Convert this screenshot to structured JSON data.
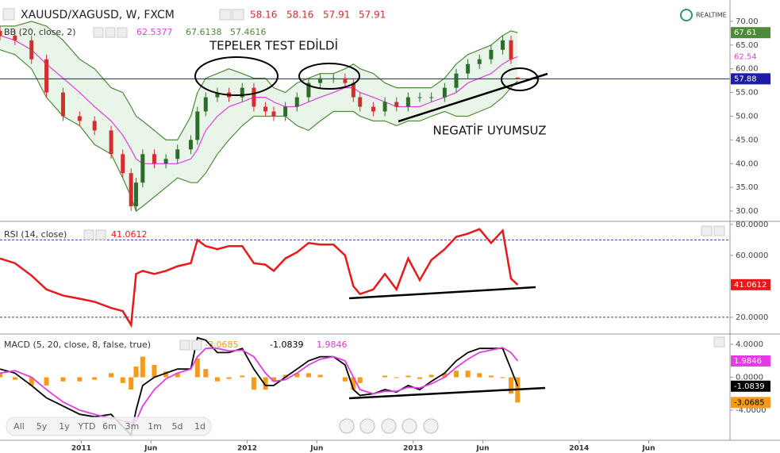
{
  "chart_data": [
    {
      "type": "candlestick",
      "title": "XAUUSD/XAGUSD, W, FXCM",
      "realtime": "REALTIME",
      "x": [
        2010.51,
        2010.6,
        2010.7,
        2010.79,
        2010.89,
        2010.99,
        2011.08,
        2011.18,
        2011.25,
        2011.3,
        2011.33,
        2011.37,
        2011.44,
        2011.51,
        2011.58,
        2011.66,
        2011.7,
        2011.75,
        2011.82,
        2011.89,
        2011.97,
        2012.04,
        2012.11,
        2012.16,
        2012.23,
        2012.3,
        2012.37,
        2012.44,
        2012.52,
        2012.59,
        2012.64,
        2012.68,
        2012.76,
        2012.83,
        2012.9,
        2012.97,
        2013.04,
        2013.11,
        2013.19,
        2013.26,
        2013.33,
        2013.4,
        2013.47,
        2013.54,
        2013.59,
        2013.63
      ],
      "open": [
        68,
        67,
        66,
        62,
        55,
        50,
        49,
        47,
        42,
        38,
        31,
        36,
        42,
        40,
        41,
        43,
        45,
        51,
        54,
        55,
        54,
        56,
        52,
        51,
        50,
        52,
        54,
        57,
        58,
        58,
        57,
        54,
        52,
        51,
        53,
        52,
        54,
        54,
        54,
        56,
        59,
        61,
        62,
        64,
        66,
        58.16
      ],
      "high": [
        69,
        68,
        67,
        63,
        56,
        51,
        50,
        48,
        43,
        39,
        37,
        43,
        43,
        42,
        44,
        46,
        52,
        55,
        56,
        56,
        57,
        57,
        53,
        52,
        53,
        55,
        58,
        59,
        59,
        59,
        58,
        55,
        53,
        54,
        54,
        55,
        55,
        55,
        57,
        60,
        62,
        63,
        65,
        67,
        67,
        58.16
      ],
      "low": [
        66,
        65,
        61,
        54,
        49,
        48,
        46,
        41,
        37,
        30,
        30,
        35,
        39,
        39,
        40,
        42,
        44,
        50,
        53,
        53,
        53,
        51,
        50,
        49,
        49,
        51,
        53,
        56,
        57,
        56,
        53,
        51,
        50,
        50,
        51,
        51,
        53,
        53,
        53,
        55,
        58,
        60,
        61,
        63,
        61,
        57.91
      ],
      "close": [
        67,
        66,
        62,
        55,
        50,
        49,
        47,
        42,
        38,
        31,
        36,
        42,
        40,
        41,
        43,
        45,
        51,
        54,
        55,
        54,
        56,
        52,
        51,
        50,
        52,
        54,
        57,
        58,
        58,
        57,
        54,
        52,
        51,
        53,
        52,
        54,
        54,
        54,
        56,
        59,
        61,
        62,
        64,
        66,
        62,
        57.91
      ],
      "up_color": "#2b6e2b",
      "down_color": "#d32f2f",
      "xlim": [
        2010.51,
        2014.91
      ],
      "ylim": [
        28.0,
        74.5
      ],
      "yticks": [
        {
          "value": 30,
          "label": "30.00"
        },
        {
          "value": 35,
          "label": "35.00"
        },
        {
          "value": 40,
          "label": "40.00"
        },
        {
          "value": 45,
          "label": "45.00"
        },
        {
          "value": 50,
          "label": "50.00"
        },
        {
          "value": 55,
          "label": "55.00"
        },
        {
          "value": 60,
          "label": "60.00"
        },
        {
          "value": 65,
          "label": "65.00"
        },
        {
          "value": 70,
          "label": "70.00"
        }
      ],
      "bb": {
        "title": "BB (20, close, 2)",
        "fill": "#e9f5e9",
        "series": [
          {
            "color": "#4f8a3a",
            "last_label": "67.61",
            "values": [
              69,
              69,
              70,
              69,
              66,
              62,
              60,
              56,
              55,
              52,
              50,
              49,
              47,
              45,
              45,
              50,
              55,
              58,
              59,
              60,
              59,
              58,
              58,
              56,
              55,
              57,
              58,
              59,
              59,
              60,
              61,
              60,
              59,
              57,
              56,
              56,
              56,
              56,
              58,
              61,
              63,
              64,
              65,
              67,
              68,
              67.6138
            ]
          },
          {
            "color": "#e03ee0",
            "last_label": "62.54",
            "values": [
              67,
              66,
              64,
              61,
              58,
              55,
              52,
              49,
              46,
              43,
              41,
              40,
              40,
              40,
              40,
              41,
              43,
              47,
              50,
              52,
              53,
              54,
              54,
              53,
              52,
              52,
              53,
              54,
              55,
              56,
              56,
              55,
              54,
              53,
              52,
              52,
              52,
              53,
              54,
              55,
              57,
              58,
              59,
              61,
              62,
              62.5377
            ]
          },
          {
            "color": "#4f8a3a",
            "values": [
              64,
              63,
              60,
              54,
              50,
              48,
              44,
              42,
              37,
              33,
              30,
              31,
              33,
              35,
              37,
              36,
              36,
              38,
              42,
              45,
              48,
              50,
              50,
              50,
              50,
              48,
              47,
              49,
              51,
              51,
              51,
              50,
              49,
              49,
              48,
              49,
              49,
              50,
              51,
              50,
              50,
              51,
              52,
              54,
              56,
              57.4616
            ]
          }
        ]
      },
      "hline": {
        "value": 57.88,
        "color": "#1c1ca8"
      },
      "annotations": [
        "TEPELER TEST EDİLDİ",
        "NEGATİF UYUMSUZ"
      ]
    },
    {
      "type": "line",
      "title": "RSI (14, close)",
      "series": [
        {
          "color": "#e8191a",
          "values": [
            58,
            55,
            47,
            38,
            34,
            32,
            30,
            26,
            24,
            15,
            48,
            50,
            48,
            50,
            53,
            55,
            70,
            66,
            64,
            66,
            66,
            55,
            54,
            50,
            58,
            62,
            68,
            67,
            67,
            60,
            40,
            35,
            38,
            48,
            38,
            58,
            44,
            57,
            64,
            72,
            74,
            77,
            68,
            76,
            45,
            41.0612
          ]
        }
      ],
      "ylim": [
        9.7,
        81.5
      ],
      "yticks": [
        {
          "value": 20,
          "label": "20.0000"
        },
        {
          "value": 60,
          "label": "60.0000"
        },
        {
          "value": 80,
          "label": "80.0000"
        }
      ],
      "bands": [
        70,
        20
      ],
      "band_color": "#3a3aa8"
    },
    {
      "type": "macd",
      "title": "MACD (5, 20, close, 8, false, true)",
      "series": [
        {
          "style": "bar",
          "color": "#f59a1a",
          "values": [
            0.5,
            -0.3,
            -1,
            -1,
            -0.5,
            -0.5,
            -0.3,
            0.5,
            -0.7,
            -1.5,
            1.3,
            2.5,
            1.5,
            0.7,
            0.5,
            0,
            2.3,
            1,
            -0.5,
            -0.2,
            0.2,
            -1.5,
            -1.5,
            -0.5,
            0.3,
            0.5,
            0.5,
            0.3,
            0,
            -0.5,
            -1.5,
            -0.7,
            0,
            0.2,
            -0.1,
            0.2,
            -0.2,
            0.3,
            0.5,
            0.8,
            0.8,
            0.5,
            0.2,
            -0.1,
            -2,
            -3.0685
          ]
        },
        {
          "style": "line",
          "color": "#000000",
          "values": [
            1,
            0.5,
            -1,
            -2.5,
            -3.5,
            -4.5,
            -4.8,
            -4.5,
            -6,
            -7,
            -4,
            -1,
            0,
            0.5,
            1,
            1,
            4.8,
            4.5,
            3,
            3,
            3.5,
            1,
            -1,
            -1,
            0,
            1,
            2,
            2.5,
            2.5,
            1.5,
            -1.5,
            -2.2,
            -2,
            -1.5,
            -1.8,
            -1,
            -1.5,
            -0.5,
            0.5,
            2,
            3,
            3.5,
            3.5,
            3.5,
            1,
            -1.0839
          ]
        },
        {
          "style": "line",
          "color": "#e03ee0",
          "values": [
            0.5,
            0.8,
            0,
            -1.5,
            -3,
            -4,
            -4.5,
            -5,
            -5.3,
            -5.5,
            -5.3,
            -3.5,
            -1.5,
            -0.2,
            0.5,
            1,
            2.5,
            3.5,
            3.5,
            3.2,
            3.3,
            2.5,
            0.5,
            -0.5,
            -0.3,
            0.5,
            1.5,
            2.2,
            2.5,
            2,
            0,
            -1.5,
            -2,
            -1.7,
            -1.7,
            -1.2,
            -1.3,
            -0.8,
            0,
            1.2,
            2.2,
            3,
            3.3,
            3.6,
            3,
            1.9846
          ]
        }
      ],
      "ylim": [
        -7.66,
        5.16
      ],
      "yticks": [
        {
          "value": -4,
          "label": "-4.0000"
        },
        {
          "value": 0,
          "label": "0.0000"
        },
        {
          "value": 4,
          "label": "4.0000"
        }
      ],
      "xticks": [
        {
          "value": 2011,
          "label": "2011"
        },
        {
          "value": 2011.42,
          "label": "Jun"
        },
        {
          "value": 2012,
          "label": "2012"
        },
        {
          "value": 2012.42,
          "label": "Jun"
        },
        {
          "value": 2013,
          "label": "2013"
        },
        {
          "value": 2013.42,
          "label": "Jun"
        },
        {
          "value": 2014,
          "label": "2014"
        },
        {
          "value": 2014.42,
          "label": "Jun"
        }
      ],
      "toolbar": [
        "All",
        "5y",
        "1y",
        "YTD",
        "6m",
        "3m",
        "1m",
        "5d",
        "1d"
      ]
    }
  ]
}
